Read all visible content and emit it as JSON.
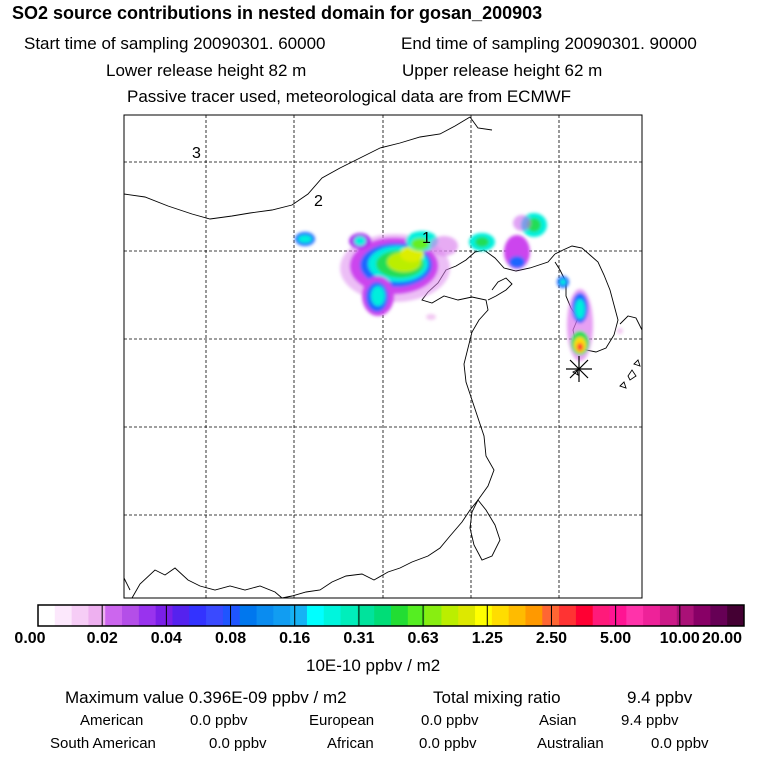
{
  "header": {
    "title": "SO2 source contributions in nested domain for gosan_200903",
    "start_label": "Start time of sampling 20090301. 60000",
    "end_label": "End time of sampling 20090301. 90000",
    "lower_label": "Lower release height   82 m",
    "upper_label": "Upper release height   62 m",
    "info": "Passive tracer used, meteorological data are from ECMWF"
  },
  "map": {
    "labels": [
      "3",
      "2",
      "1"
    ],
    "receptor_marker": "asterisk-icon"
  },
  "colorbar": {
    "unit": "10E-10 ppbv / m2",
    "ticks": [
      "0.00",
      "0.02",
      "0.04",
      "0.08",
      "0.16",
      "0.31",
      "0.63",
      "1.25",
      "2.50",
      "5.00",
      "10.00",
      "20.00"
    ],
    "colors": [
      "#ffffff",
      "#fce8fc",
      "#f6cdf6",
      "#eeb0f0",
      "#cc66ee",
      "#b44ee8",
      "#9933ee",
      "#7a1fe8",
      "#5522ee",
      "#3333ff",
      "#3a4aff",
      "#1f55ff",
      "#0077ee",
      "#0a8cf0",
      "#119df2",
      "#16b2f4",
      "#00ffff",
      "#00f5dd",
      "#00eebb",
      "#00e39c",
      "#00dd77",
      "#22dd33",
      "#55ee22",
      "#88ee11",
      "#bbee00",
      "#dde800",
      "#ffff00",
      "#ffdd00",
      "#ffbb00",
      "#ff9900",
      "#ff6633",
      "#ff3333",
      "#ff0033",
      "#ff1a7a",
      "#ff1493",
      "#ff33aa",
      "#ee2299",
      "#cc1a88",
      "#aa1177",
      "#880066",
      "#660055",
      "#440033"
    ]
  },
  "stats": {
    "max_label": "Maximum value  0.396E-09 ppbv / m2",
    "total_label": "Total mixing ratio",
    "total_value": "9.4 ppbv",
    "regions": [
      {
        "name": "American",
        "value": "0.0 ppbv"
      },
      {
        "name": "European",
        "value": "0.0 ppbv"
      },
      {
        "name": "Asian",
        "value": "9.4 ppbv"
      },
      {
        "name": "South American",
        "value": "0.0 ppbv"
      },
      {
        "name": "African",
        "value": "0.0 ppbv"
      },
      {
        "name": "Australian",
        "value": "0.0 ppbv"
      }
    ]
  }
}
